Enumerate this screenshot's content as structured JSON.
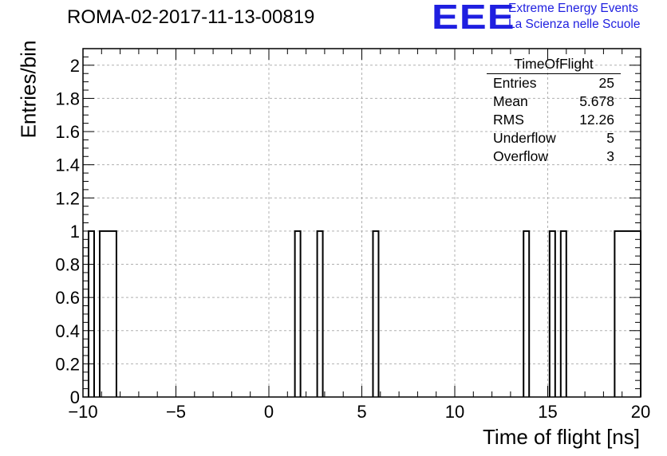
{
  "header": {
    "run_title": "ROMA-02-2017-11-13-00819",
    "logo_text": "EEE",
    "logo_line1": "Extreme Energy Events",
    "logo_line2": "La Scienza nelle Scuole"
  },
  "colors": {
    "logo": "#1f1fe0",
    "line": "#000000",
    "grid": "#b0b0b0"
  },
  "stats": {
    "title": "TimeOfFlight",
    "rows": [
      {
        "label": "Entries",
        "value": "25"
      },
      {
        "label": "Mean",
        "value": "5.678"
      },
      {
        "label": "RMS",
        "value": "12.26"
      },
      {
        "label": "Underflow",
        "value": "5"
      },
      {
        "label": "Overflow",
        "value": "3"
      }
    ]
  },
  "chart_data": {
    "type": "bar",
    "title": "ROMA-02-2017-11-13-00819",
    "xlabel": "Time of flight [ns]",
    "ylabel": "Entries/bin",
    "xlim": [
      -10,
      20
    ],
    "ylim": [
      0,
      2.1
    ],
    "grid": true,
    "xticks": [
      -10,
      -5,
      0,
      5,
      10,
      15,
      20
    ],
    "xtick_labels": [
      "−10",
      "−5",
      "0",
      "5",
      "10",
      "15",
      "20"
    ],
    "yticks": [
      0,
      0.2,
      0.4,
      0.6,
      0.8,
      1,
      1.2,
      1.4,
      1.6,
      1.8,
      2
    ],
    "ytick_labels": [
      "0",
      "0.2",
      "0.4",
      "0.6",
      "0.8",
      "1",
      "1.2",
      "1.4",
      "1.6",
      "1.8",
      "2"
    ],
    "bins": [
      {
        "x0": -9.7,
        "x1": -9.4,
        "value": 1
      },
      {
        "x0": -9.1,
        "x1": -8.2,
        "value": 1
      },
      {
        "x0": 1.4,
        "x1": 1.7,
        "value": 1
      },
      {
        "x0": 2.6,
        "x1": 2.9,
        "value": 1
      },
      {
        "x0": 5.6,
        "x1": 5.9,
        "value": 1
      },
      {
        "x0": 13.7,
        "x1": 14.0,
        "value": 1
      },
      {
        "x0": 15.1,
        "x1": 15.4,
        "value": 1
      },
      {
        "x0": 15.7,
        "x1": 16.0,
        "value": 1
      },
      {
        "x0": 18.6,
        "x1": 20.0,
        "value": 1
      }
    ]
  }
}
